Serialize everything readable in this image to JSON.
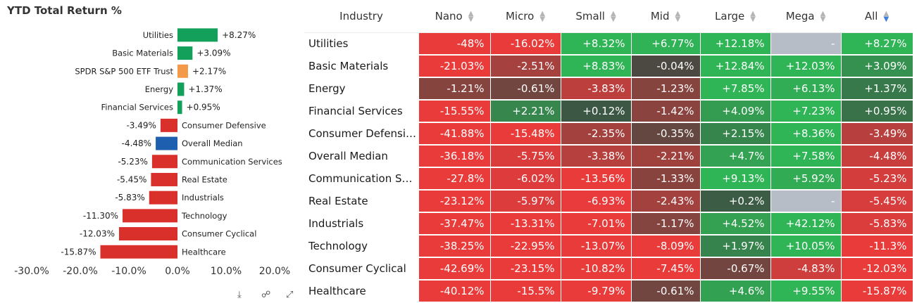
{
  "chart_data": [
    {
      "type": "bar",
      "orientation": "horizontal",
      "title": "YTD Total Return %",
      "categories": [
        "Utilities",
        "Basic Materials",
        "SPDR S&P 500 ETF Trust",
        "Energy",
        "Financial Services",
        "Consumer Defensive",
        "Overall Median",
        "Communication Services",
        "Real Estate",
        "Industrials",
        "Technology",
        "Consumer Cyclical",
        "Healthcare"
      ],
      "values": [
        8.27,
        3.09,
        2.17,
        1.37,
        0.95,
        -3.49,
        -4.48,
        -5.23,
        -5.45,
        -5.83,
        -11.3,
        -12.03,
        -15.87
      ],
      "labels": [
        "+8.27%",
        "+3.09%",
        "+2.17%",
        "+1.37%",
        "+0.95%",
        "-3.49%",
        "-4.48%",
        "-5.23%",
        "-5.45%",
        "-5.83%",
        "-11.30%",
        "-12.03%",
        "-15.87%"
      ],
      "colors": [
        "#13a05a",
        "#13a05a",
        "#f2994a",
        "#13a05a",
        "#13a05a",
        "#d9302c",
        "#1f5fb0",
        "#d9302c",
        "#d9302c",
        "#d9302c",
        "#d9302c",
        "#d9302c",
        "#d9302c"
      ],
      "xlim": [
        -30,
        20
      ],
      "xticks": [
        -30,
        -20,
        -10,
        0,
        10,
        20
      ],
      "xtick_labels": [
        "-30.0%",
        "-20.0%",
        "-10.0%",
        "0.0%",
        "10.0%",
        "20.0%"
      ],
      "grid": false
    },
    {
      "type": "table",
      "columns": [
        "Industry",
        "Nano",
        "Micro",
        "Small",
        "Mid",
        "Large",
        "Mega",
        "All"
      ],
      "sorted_column": "All",
      "rows": [
        {
          "name": "Utilities",
          "display": "Utilities",
          "cells": [
            {
              "t": "-48%",
              "v": -48
            },
            {
              "t": "-16.02%",
              "v": -16.02
            },
            {
              "t": "+8.32%",
              "v": 8.32
            },
            {
              "t": "+6.77%",
              "v": 6.77
            },
            {
              "t": "+12.18%",
              "v": 12.18
            },
            {
              "t": "-",
              "v": null
            },
            {
              "t": "+8.27%",
              "v": 8.27
            }
          ]
        },
        {
          "name": "Basic Materials",
          "display": "Basic Materials",
          "cells": [
            {
              "t": "-21.03%",
              "v": -21.03
            },
            {
              "t": "-2.51%",
              "v": -2.51
            },
            {
              "t": "+8.83%",
              "v": 8.83
            },
            {
              "t": "-0.04%",
              "v": -0.04
            },
            {
              "t": "+12.84%",
              "v": 12.84
            },
            {
              "t": "+12.03%",
              "v": 12.03
            },
            {
              "t": "+3.09%",
              "v": 3.09
            }
          ]
        },
        {
          "name": "Energy",
          "display": "Energy",
          "cells": [
            {
              "t": "-1.21%",
              "v": -1.21
            },
            {
              "t": "-0.61%",
              "v": -0.61
            },
            {
              "t": "-3.83%",
              "v": -3.83
            },
            {
              "t": "-1.23%",
              "v": -1.23
            },
            {
              "t": "+7.85%",
              "v": 7.85
            },
            {
              "t": "+6.13%",
              "v": 6.13
            },
            {
              "t": "+1.37%",
              "v": 1.37
            }
          ]
        },
        {
          "name": "Financial Services",
          "display": "Financial Services",
          "cells": [
            {
              "t": "-15.55%",
              "v": -15.55
            },
            {
              "t": "+2.21%",
              "v": 2.21
            },
            {
              "t": "+0.12%",
              "v": 0.12
            },
            {
              "t": "-1.42%",
              "v": -1.42
            },
            {
              "t": "+4.09%",
              "v": 4.09
            },
            {
              "t": "+7.23%",
              "v": 7.23
            },
            {
              "t": "+0.95%",
              "v": 0.95
            }
          ]
        },
        {
          "name": "Consumer Defensive",
          "display": "Consumer Defensive",
          "cells": [
            {
              "t": "-41.88%",
              "v": -41.88
            },
            {
              "t": "-15.48%",
              "v": -15.48
            },
            {
              "t": "-2.35%",
              "v": -2.35
            },
            {
              "t": "-0.35%",
              "v": -0.35
            },
            {
              "t": "+2.15%",
              "v": 2.15
            },
            {
              "t": "+8.36%",
              "v": 8.36
            },
            {
              "t": "-3.49%",
              "v": -3.49
            }
          ]
        },
        {
          "name": "Overall Median",
          "display": "Overall Median",
          "cells": [
            {
              "t": "-36.18%",
              "v": -36.18
            },
            {
              "t": "-5.75%",
              "v": -5.75
            },
            {
              "t": "-3.38%",
              "v": -3.38
            },
            {
              "t": "-2.21%",
              "v": -2.21
            },
            {
              "t": "+4.7%",
              "v": 4.7
            },
            {
              "t": "+7.58%",
              "v": 7.58
            },
            {
              "t": "-4.48%",
              "v": -4.48
            }
          ]
        },
        {
          "name": "Communication Services",
          "display": "Communication Se...",
          "cells": [
            {
              "t": "-27.8%",
              "v": -27.8
            },
            {
              "t": "-6.02%",
              "v": -6.02
            },
            {
              "t": "-13.56%",
              "v": -13.56
            },
            {
              "t": "-1.33%",
              "v": -1.33
            },
            {
              "t": "+9.13%",
              "v": 9.13
            },
            {
              "t": "+5.92%",
              "v": 5.92
            },
            {
              "t": "-5.23%",
              "v": -5.23
            }
          ]
        },
        {
          "name": "Real Estate",
          "display": "Real Estate",
          "cells": [
            {
              "t": "-23.12%",
              "v": -23.12
            },
            {
              "t": "-5.97%",
              "v": -5.97
            },
            {
              "t": "-6.93%",
              "v": -6.93
            },
            {
              "t": "-2.43%",
              "v": -2.43
            },
            {
              "t": "+0.2%",
              "v": 0.2
            },
            {
              "t": "-",
              "v": null
            },
            {
              "t": "-5.45%",
              "v": -5.45
            }
          ]
        },
        {
          "name": "Industrials",
          "display": "Industrials",
          "cells": [
            {
              "t": "-37.47%",
              "v": -37.47
            },
            {
              "t": "-13.31%",
              "v": -13.31
            },
            {
              "t": "-7.01%",
              "v": -7.01
            },
            {
              "t": "-1.17%",
              "v": -1.17
            },
            {
              "t": "+4.52%",
              "v": 4.52
            },
            {
              "t": "+42.12%",
              "v": 42.12
            },
            {
              "t": "-5.83%",
              "v": -5.83
            }
          ]
        },
        {
          "name": "Technology",
          "display": "Technology",
          "cells": [
            {
              "t": "-38.25%",
              "v": -38.25
            },
            {
              "t": "-22.95%",
              "v": -22.95
            },
            {
              "t": "-13.07%",
              "v": -13.07
            },
            {
              "t": "-8.09%",
              "v": -8.09
            },
            {
              "t": "+1.97%",
              "v": 1.97
            },
            {
              "t": "+10.05%",
              "v": 10.05
            },
            {
              "t": "-11.3%",
              "v": -11.3
            }
          ]
        },
        {
          "name": "Consumer Cyclical",
          "display": "Consumer Cyclical",
          "cells": [
            {
              "t": "-42.69%",
              "v": -42.69
            },
            {
              "t": "-23.15%",
              "v": -23.15
            },
            {
              "t": "-10.82%",
              "v": -10.82
            },
            {
              "t": "-7.45%",
              "v": -7.45
            },
            {
              "t": "-0.67%",
              "v": -0.67
            },
            {
              "t": "-4.83%",
              "v": -4.83
            },
            {
              "t": "-12.03%",
              "v": -12.03
            }
          ]
        },
        {
          "name": "Healthcare",
          "display": "Healthcare",
          "cells": [
            {
              "t": "-40.12%",
              "v": -40.12
            },
            {
              "t": "-15.5%",
              "v": -15.5
            },
            {
              "t": "-9.79%",
              "v": -9.79
            },
            {
              "t": "-0.61%",
              "v": -0.61
            },
            {
              "t": "+4.6%",
              "v": 4.6
            },
            {
              "t": "+9.55%",
              "v": 9.55
            },
            {
              "t": "-15.87%",
              "v": -15.87
            }
          ]
        }
      ]
    }
  ],
  "heatmap_colors": {
    "strong_positive": "#30b556",
    "neutral": "#3e4a42",
    "strong_negative": "#ea3b3b",
    "missing": "#b7bdc6"
  },
  "toolbar_icons": [
    "download-icon",
    "share-icon",
    "expand-icon"
  ]
}
